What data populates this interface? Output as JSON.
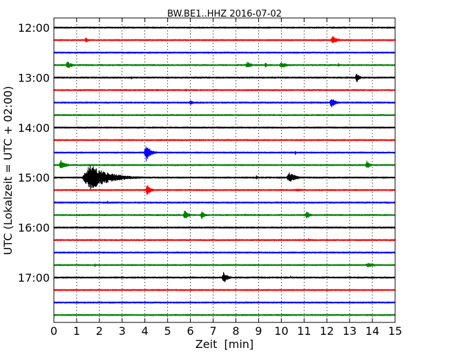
{
  "chart_data": {
    "type": "line",
    "title": "BW.BE1..HHZ 2016-07-02",
    "xlabel": "Zeit  [min]",
    "ylabel": "UTC (Lokalzeit = UTC + 02:00)",
    "xlim": [
      0,
      15
    ],
    "x_ticks": [
      "0",
      "1",
      "2",
      "3",
      "4",
      "5",
      "6",
      "7",
      "8",
      "9",
      "10",
      "11",
      "12",
      "13",
      "14",
      "15"
    ],
    "y_ticks": [
      {
        "label": "12:00",
        "trace": 0
      },
      {
        "label": "13:00",
        "trace": 4
      },
      {
        "label": "14:00",
        "trace": 8
      },
      {
        "label": "15:00",
        "trace": 12
      },
      {
        "label": "16:00",
        "trace": 16
      },
      {
        "label": "17:00",
        "trace": 20
      }
    ],
    "trace_interval_min": 15,
    "grid": "vertical dotted",
    "traces": [
      {
        "start": "12:00",
        "color": "#000000",
        "events": []
      },
      {
        "start": "12:15",
        "color": "#ff0000",
        "events": [
          {
            "t": 1.4,
            "amp": 0.35,
            "dur": 0.3
          },
          {
            "t": 12.25,
            "amp": 0.6,
            "dur": 0.6
          }
        ]
      },
      {
        "start": "12:30",
        "color": "#0000ff",
        "events": []
      },
      {
        "start": "12:45",
        "color": "#008000",
        "events": [
          {
            "t": 0.6,
            "amp": 0.5,
            "dur": 0.6
          },
          {
            "t": 8.5,
            "amp": 0.4,
            "dur": 0.6
          },
          {
            "t": 9.3,
            "amp": 0.3,
            "dur": 0.3
          },
          {
            "t": 10.0,
            "amp": 0.35,
            "dur": 0.8
          },
          {
            "t": 12.5,
            "amp": 0.25,
            "dur": 0.2
          }
        ]
      },
      {
        "start": "13:00",
        "color": "#000000",
        "events": [
          {
            "t": 3.4,
            "amp": 0.25,
            "dur": 0.1
          },
          {
            "t": 13.3,
            "amp": 0.7,
            "dur": 0.35
          }
        ]
      },
      {
        "start": "13:15",
        "color": "#ff0000",
        "events": [
          {
            "t": 5.8,
            "amp": 0.25,
            "dur": 0.1
          }
        ]
      },
      {
        "start": "13:30",
        "color": "#0000ff",
        "events": [
          {
            "t": 6.0,
            "amp": 0.4,
            "dur": 0.3
          },
          {
            "t": 12.2,
            "amp": 0.6,
            "dur": 0.6
          }
        ]
      },
      {
        "start": "13:45",
        "color": "#008000",
        "events": []
      },
      {
        "start": "14:00",
        "color": "#000000",
        "events": []
      },
      {
        "start": "14:15",
        "color": "#ff0000",
        "events": []
      },
      {
        "start": "14:30",
        "color": "#0000ff",
        "events": [
          {
            "t": 4.05,
            "amp": 1.1,
            "dur": 0.6
          },
          {
            "t": 10.6,
            "amp": 0.3,
            "dur": 0.15
          }
        ]
      },
      {
        "start": "14:45",
        "color": "#008000",
        "events": [
          {
            "t": 0.3,
            "amp": 0.65,
            "dur": 0.6
          },
          {
            "t": 13.75,
            "amp": 0.55,
            "dur": 0.4
          }
        ]
      },
      {
        "start": "15:00",
        "color": "#000000",
        "events": [
          {
            "t": 1.6,
            "amp": 1.6,
            "dur": 2.5
          },
          {
            "t": 8.9,
            "amp": 0.3,
            "dur": 0.2
          },
          {
            "t": 10.35,
            "amp": 0.6,
            "dur": 0.9
          }
        ]
      },
      {
        "start": "15:15",
        "color": "#ff0000",
        "events": [
          {
            "t": 4.1,
            "amp": 0.75,
            "dur": 0.45
          },
          {
            "t": 10.7,
            "amp": 0.15,
            "dur": 1.8
          }
        ]
      },
      {
        "start": "15:30",
        "color": "#0000ff",
        "events": [
          {
            "t": 2.35,
            "amp": 0.25,
            "dur": 0.1
          }
        ]
      },
      {
        "start": "15:45",
        "color": "#008000",
        "events": [
          {
            "t": 5.75,
            "amp": 0.6,
            "dur": 0.5
          },
          {
            "t": 6.5,
            "amp": 0.5,
            "dur": 0.45
          },
          {
            "t": 8.4,
            "amp": 0.2,
            "dur": 0.15
          },
          {
            "t": 11.1,
            "amp": 0.55,
            "dur": 0.45
          }
        ]
      },
      {
        "start": "16:00",
        "color": "#000000",
        "events": []
      },
      {
        "start": "16:15",
        "color": "#ff0000",
        "events": [
          {
            "t": 9.7,
            "amp": 0.2,
            "dur": 0.1
          },
          {
            "t": 11.2,
            "amp": 0.3,
            "dur": 0.1
          }
        ]
      },
      {
        "start": "16:30",
        "color": "#0000ff",
        "events": []
      },
      {
        "start": "16:45",
        "color": "#008000",
        "events": [
          {
            "t": 1.8,
            "amp": 0.25,
            "dur": 0.15
          },
          {
            "t": 13.8,
            "amp": 0.25,
            "dur": 1.2
          }
        ]
      },
      {
        "start": "17:00",
        "color": "#000000",
        "events": [
          {
            "t": 7.45,
            "amp": 0.8,
            "dur": 0.5
          },
          {
            "t": 10.4,
            "amp": 0.2,
            "dur": 0.1
          }
        ]
      },
      {
        "start": "17:15",
        "color": "#ff0000",
        "events": []
      },
      {
        "start": "17:30",
        "color": "#0000ff",
        "events": []
      },
      {
        "start": "17:45",
        "color": "#008000",
        "events": []
      }
    ]
  }
}
